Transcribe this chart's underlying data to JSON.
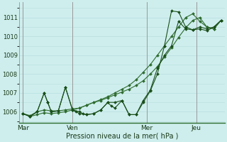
{
  "xlabel": "Pression niveau de la mer( hPa )",
  "bg_color": "#ceeeed",
  "grid_color": "#b8dede",
  "line_dark": "#1a4f1a",
  "line_mid": "#2e6b2e",
  "ylim": [
    1005.4,
    1011.8
  ],
  "yticks": [
    1006,
    1007,
    1008,
    1009,
    1010,
    1011
  ],
  "xtick_labels": [
    "Mar",
    "Ven",
    "Mer",
    "Jeu"
  ],
  "xtick_positions": [
    0,
    14,
    35,
    49
  ],
  "vline_positions": [
    0,
    14,
    35,
    49
  ],
  "n_points": 57,
  "series1_x": [
    0,
    2,
    4,
    6,
    8,
    10,
    12,
    14,
    16,
    18,
    20,
    22,
    24,
    26,
    28,
    30,
    32,
    34,
    36,
    38,
    40,
    42,
    44,
    46,
    48,
    50,
    52,
    54,
    56
  ],
  "series1_y": [
    1005.9,
    1005.75,
    1005.85,
    1005.95,
    1005.9,
    1005.95,
    1006.0,
    1006.1,
    1006.2,
    1006.35,
    1006.5,
    1006.65,
    1006.8,
    1007.0,
    1007.2,
    1007.4,
    1007.7,
    1008.1,
    1008.5,
    1009.0,
    1009.5,
    1010.0,
    1010.5,
    1011.0,
    1011.2,
    1010.8,
    1010.5,
    1010.4,
    1010.85
  ],
  "series2_x": [
    0,
    2,
    4,
    6,
    7,
    8,
    10,
    12,
    14,
    16,
    17,
    18,
    20,
    22,
    24,
    25,
    26,
    28,
    30,
    32,
    34,
    36,
    38,
    40,
    42,
    44,
    46,
    48,
    50,
    52,
    54,
    56
  ],
  "series2_y": [
    1005.9,
    1005.75,
    1006.0,
    1007.0,
    1006.5,
    1006.0,
    1006.05,
    1007.3,
    1006.1,
    1006.0,
    1005.9,
    1005.85,
    1005.9,
    1006.1,
    1006.5,
    1006.3,
    1006.2,
    1006.6,
    1005.85,
    1005.85,
    1006.5,
    1007.1,
    1008.0,
    1009.5,
    1011.35,
    1011.3,
    1010.5,
    1010.35,
    1010.4,
    1010.3,
    1010.5,
    1010.85
  ],
  "series3_x": [
    0,
    2,
    4,
    6,
    7,
    8,
    10,
    12,
    14,
    15,
    16,
    18,
    20,
    22,
    24,
    26,
    28,
    30,
    32,
    34,
    36,
    38,
    40,
    42,
    44,
    46,
    48,
    50,
    52,
    54,
    56
  ],
  "series3_y": [
    1005.9,
    1005.75,
    1006.0,
    1007.0,
    1006.5,
    1006.0,
    1006.05,
    1007.3,
    1006.1,
    1006.0,
    1005.9,
    1005.85,
    1005.9,
    1006.1,
    1006.5,
    1006.5,
    1006.6,
    1005.85,
    1005.85,
    1006.6,
    1007.15,
    1008.3,
    1009.0,
    1009.5,
    1010.8,
    1010.4,
    1010.35,
    1010.5,
    1010.4,
    1010.5,
    1010.85
  ],
  "series4_x": [
    0,
    2,
    4,
    6,
    8,
    10,
    12,
    14,
    16,
    18,
    20,
    22,
    24,
    26,
    28,
    30,
    32,
    34,
    36,
    38,
    40,
    42,
    44,
    46,
    48,
    50,
    52,
    54,
    56
  ],
  "series4_y": [
    1005.9,
    1005.8,
    1006.0,
    1006.1,
    1006.05,
    1006.05,
    1006.1,
    1006.15,
    1006.2,
    1006.35,
    1006.5,
    1006.6,
    1006.75,
    1006.9,
    1007.05,
    1007.2,
    1007.4,
    1007.65,
    1008.0,
    1008.4,
    1008.9,
    1009.4,
    1009.95,
    1010.45,
    1010.85,
    1011.0,
    1010.5,
    1010.4,
    1010.85
  ]
}
